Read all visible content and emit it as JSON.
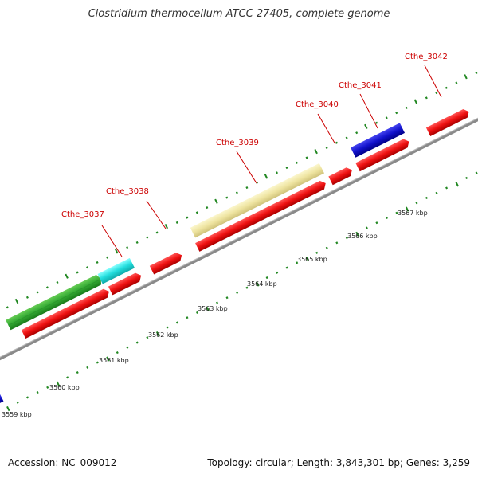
{
  "title": "Clostridium thermocellum ATCC 27405, complete genome",
  "footer": {
    "accession": "Accession: NC_009012",
    "summary": "Topology: circular; Length: 3,843,301 bp; Genes: 3,259"
  },
  "colors": {
    "backbone": "#888888",
    "cds": "#ee1111",
    "label": "#cc0000",
    "tick": "#228822",
    "green": "#33aa33",
    "cyan": "#22dddd",
    "yellow": "#eee4a0",
    "blue": "#1111cc",
    "steelblue": "#5588aa"
  },
  "gene_labels": [
    {
      "name": "gene-label-cthe-3037",
      "text": "Cthe_3037"
    },
    {
      "name": "gene-label-cthe-3038",
      "text": "Cthe_3038"
    },
    {
      "name": "gene-label-cthe-3039",
      "text": "Cthe_3039"
    },
    {
      "name": "gene-label-cthe-3040",
      "text": "Cthe_3040"
    },
    {
      "name": "gene-label-cthe-3041",
      "text": "Cthe_3041"
    },
    {
      "name": "gene-label-cthe-3042",
      "text": "Cthe_3042"
    }
  ],
  "kbp_labels": [
    {
      "name": "kbp-label-3559",
      "text": "3559 kbp"
    },
    {
      "name": "kbp-label-3560",
      "text": "3560 kbp"
    },
    {
      "name": "kbp-label-3561",
      "text": "3561 kbp"
    },
    {
      "name": "kbp-label-3562",
      "text": "3562 kbp"
    },
    {
      "name": "kbp-label-3563",
      "text": "3563 kbp"
    },
    {
      "name": "kbp-label-3564",
      "text": "3564 kbp"
    },
    {
      "name": "kbp-label-3565",
      "text": "3565 kbp"
    },
    {
      "name": "kbp-label-3566",
      "text": "3566 kbp"
    },
    {
      "name": "kbp-label-3567",
      "text": "3567 kbp"
    }
  ]
}
